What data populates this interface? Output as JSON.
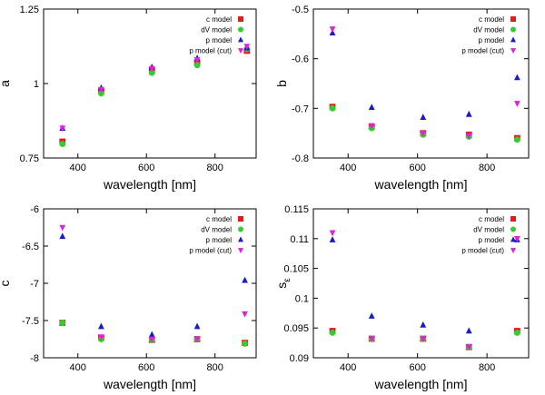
{
  "figure": {
    "colors": {
      "c model": "#e41a1c",
      "dV model": "#33cc33",
      "p model": "#1a1acc",
      "p model (cut)": "#e020e0"
    },
    "markers": {
      "c model": "square",
      "dV model": "circle",
      "p model": "triangle-up",
      "p model (cut)": "triangle-down"
    }
  },
  "chart_data": [
    {
      "type": "scatter",
      "xlabel": "wavelength [nm]",
      "ylabel": "a",
      "xlim": [
        300,
        920
      ],
      "ylim": [
        0.75,
        1.25
      ],
      "xticks": [
        {
          "v": 400,
          "label": "400"
        },
        {
          "v": 600,
          "label": "600"
        },
        {
          "v": 800,
          "label": "800"
        }
      ],
      "yticks": [
        {
          "v": 0.75,
          "label": "0.75"
        },
        {
          "v": 1.0,
          "label": "1"
        },
        {
          "v": 1.25,
          "label": "1.25"
        }
      ],
      "legend": "top-right",
      "series": [
        {
          "name": "c model",
          "x": [
            355,
            468,
            616,
            748,
            893
          ],
          "y": [
            0.805,
            0.975,
            1.045,
            1.07,
            1.11
          ]
        },
        {
          "name": "dV model",
          "x": [
            355,
            468,
            616,
            748,
            893
          ],
          "y": [
            0.797,
            0.967,
            1.036,
            1.062,
            1.116
          ]
        },
        {
          "name": "p model",
          "x": [
            355,
            468,
            616,
            748,
            893
          ],
          "y": [
            0.85,
            0.985,
            1.055,
            1.085,
            1.12
          ]
        },
        {
          "name": "p model (cut)",
          "x": [
            355,
            468,
            616,
            748,
            893
          ],
          "y": [
            0.85,
            0.98,
            1.05,
            1.08,
            1.125
          ]
        }
      ]
    },
    {
      "type": "scatter",
      "xlabel": "wavelength [nm]",
      "ylabel": "b",
      "xlim": [
        300,
        920
      ],
      "ylim": [
        -0.8,
        -0.5
      ],
      "xticks": [
        {
          "v": 400,
          "label": "400"
        },
        {
          "v": 600,
          "label": "600"
        },
        {
          "v": 800,
          "label": "800"
        }
      ],
      "yticks": [
        {
          "v": -0.8,
          "label": "-0.8"
        },
        {
          "v": -0.7,
          "label": "-0.7"
        },
        {
          "v": -0.6,
          "label": "-0.6"
        },
        {
          "v": -0.5,
          "label": "-0.5"
        }
      ],
      "legend": "top-right",
      "series": [
        {
          "name": "c model",
          "x": [
            355,
            468,
            616,
            748,
            887
          ],
          "y": [
            -0.697,
            -0.737,
            -0.75,
            -0.753,
            -0.76
          ]
        },
        {
          "name": "dV model",
          "x": [
            355,
            468,
            616,
            748,
            887
          ],
          "y": [
            -0.7,
            -0.74,
            -0.753,
            -0.757,
            -0.763
          ]
        },
        {
          "name": "p model",
          "x": [
            355,
            468,
            616,
            748,
            887
          ],
          "y": [
            -0.548,
            -0.698,
            -0.718,
            -0.712,
            -0.638
          ]
        },
        {
          "name": "p model (cut)",
          "x": [
            355,
            468,
            616,
            748,
            887
          ],
          "y": [
            -0.54,
            -0.735,
            -0.75,
            -0.755,
            -0.69
          ]
        }
      ]
    },
    {
      "type": "scatter",
      "xlabel": "wavelength [nm]",
      "ylabel": "c",
      "xlim": [
        300,
        920
      ],
      "ylim": [
        -8,
        -6
      ],
      "xticks": [
        {
          "v": 400,
          "label": "400"
        },
        {
          "v": 600,
          "label": "600"
        },
        {
          "v": 800,
          "label": "800"
        }
      ],
      "yticks": [
        {
          "v": -8,
          "label": "-8"
        },
        {
          "v": -7.5,
          "label": "-7.5"
        },
        {
          "v": -7,
          "label": "-7"
        },
        {
          "v": -6.5,
          "label": "-6.5"
        },
        {
          "v": -6,
          "label": "-6"
        }
      ],
      "legend": "top-right",
      "series": [
        {
          "name": "c model",
          "x": [
            355,
            468,
            616,
            748,
            887
          ],
          "y": [
            -7.53,
            -7.73,
            -7.76,
            -7.75,
            -7.8
          ]
        },
        {
          "name": "dV model",
          "x": [
            355,
            468,
            616,
            748,
            887
          ],
          "y": [
            -7.53,
            -7.75,
            -7.76,
            -7.75,
            -7.81
          ]
        },
        {
          "name": "p model",
          "x": [
            355,
            468,
            616,
            748,
            887
          ],
          "y": [
            -6.37,
            -7.58,
            -7.69,
            -7.58,
            -6.96
          ]
        },
        {
          "name": "p model (cut)",
          "x": [
            355,
            468,
            616,
            748,
            887
          ],
          "y": [
            -6.25,
            -7.72,
            -7.75,
            -7.75,
            -7.41
          ]
        }
      ]
    },
    {
      "type": "scatter",
      "xlabel": "wavelength [nm]",
      "ylabel": "s",
      "ylabel_sub": "ε",
      "xlim": [
        300,
        920
      ],
      "ylim": [
        0.09,
        0.115
      ],
      "xticks": [
        {
          "v": 400,
          "label": "400"
        },
        {
          "v": 600,
          "label": "600"
        },
        {
          "v": 800,
          "label": "800"
        }
      ],
      "yticks": [
        {
          "v": 0.09,
          "label": "0.09"
        },
        {
          "v": 0.095,
          "label": "0.095"
        },
        {
          "v": 0.1,
          "label": "0.1"
        },
        {
          "v": 0.105,
          "label": "0.105"
        },
        {
          "v": 0.11,
          "label": "0.11"
        },
        {
          "v": 0.115,
          "label": "0.115"
        }
      ],
      "legend": "top-right",
      "series": [
        {
          "name": "c model",
          "x": [
            355,
            468,
            616,
            748,
            887
          ],
          "y": [
            0.0945,
            0.0932,
            0.0932,
            0.0918,
            0.0945
          ]
        },
        {
          "name": "dV model",
          "x": [
            355,
            468,
            616,
            748,
            887
          ],
          "y": [
            0.0942,
            0.0932,
            0.0932,
            0.0918,
            0.0942
          ]
        },
        {
          "name": "p model",
          "x": [
            355,
            468,
            616,
            748,
            887
          ],
          "y": [
            0.1098,
            0.097,
            0.0955,
            0.0945,
            0.1098
          ]
        },
        {
          "name": "p model (cut)",
          "x": [
            355,
            468,
            616,
            748,
            887
          ],
          "y": [
            0.111,
            0.0932,
            0.0932,
            0.0918,
            0.11
          ]
        }
      ]
    }
  ]
}
